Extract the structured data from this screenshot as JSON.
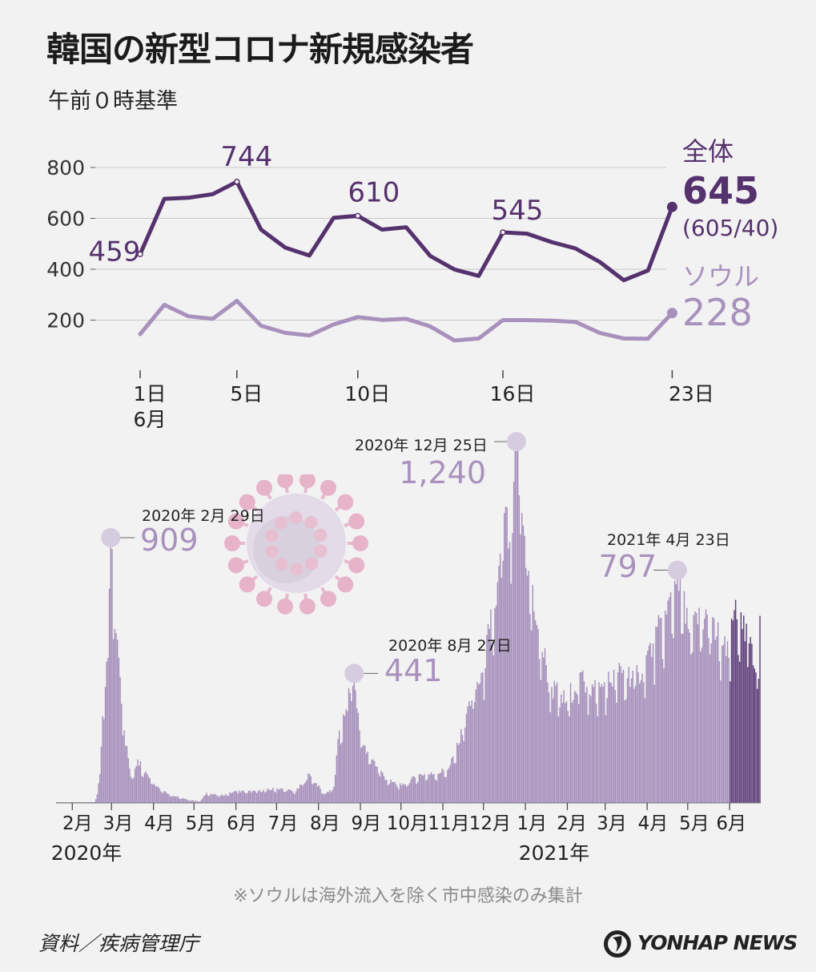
{
  "header": {
    "title": "韓国の新型コロナ新規感染者",
    "subtitle": "午前０時基準"
  },
  "footer": {
    "note": "※ソウルは海外流入を除く市中感染のみ集計",
    "source": "資料／疾病管理庁",
    "logo_text": "YONHAP NEWS"
  },
  "colors": {
    "total_line": "#55316e",
    "seoul_line": "#a891bd",
    "bars": "#a58fbb",
    "bars_june": "#5e3d7a",
    "peak_marker": "#d6cce0"
  },
  "chart_data": [
    {
      "type": "line",
      "y_ticks": [
        "800",
        "600",
        "400",
        "200"
      ],
      "ylim": [
        0,
        800
      ],
      "grid": true,
      "x_tick_labels": [
        {
          "day": 1,
          "label": "1日"
        },
        {
          "day": 5,
          "label": "5日"
        },
        {
          "day": 10,
          "label": "10日"
        },
        {
          "day": 16,
          "label": "16日"
        },
        {
          "day": 23,
          "label": "23日"
        }
      ],
      "month_label": "6月",
      "series": [
        {
          "name": "全体",
          "x": [
            1,
            2,
            3,
            4,
            5,
            6,
            7,
            8,
            9,
            10,
            11,
            12,
            13,
            14,
            15,
            16,
            17,
            18,
            19,
            20,
            21,
            22,
            23
          ],
          "values": [
            459,
            677,
            681,
            695,
            744,
            556,
            485,
            454,
            602,
            610,
            556,
            565,
            452,
            399,
            374,
            545,
            540,
            507,
            482,
            429,
            357,
            395,
            645
          ],
          "point_labels": [
            {
              "day": 1,
              "text": "459"
            },
            {
              "day": 5,
              "text": "744"
            },
            {
              "day": 10,
              "text": "610"
            },
            {
              "day": 16,
              "text": "545"
            }
          ],
          "end_value_label": "645",
          "end_sub_label": "(605/40)"
        },
        {
          "name": "ソウル",
          "x": [
            1,
            2,
            3,
            4,
            5,
            6,
            7,
            8,
            9,
            10,
            11,
            12,
            13,
            14,
            15,
            16,
            17,
            18,
            19,
            20,
            21,
            22,
            23
          ],
          "values": [
            145,
            260,
            215,
            205,
            276,
            178,
            150,
            140,
            183,
            212,
            201,
            205,
            175,
            120,
            128,
            200,
            200,
            198,
            193,
            150,
            128,
            127,
            228
          ],
          "end_value_label": "228"
        }
      ]
    },
    {
      "type": "bar",
      "x_start": "2020-01-20",
      "x_end": "2021-06-23",
      "month_labels": [
        "2月",
        "3月",
        "4月",
        "5月",
        "6月",
        "7月",
        "8月",
        "9月",
        "10月",
        "11月",
        "12月",
        "1月",
        "2月",
        "3月",
        "4月",
        "5月",
        "6月"
      ],
      "year_labels": [
        "2020年",
        "2021年"
      ],
      "anchors": [
        [
          "2020-01-20",
          1
        ],
        [
          "2020-01-31",
          2
        ],
        [
          "2020-02-17",
          3
        ],
        [
          "2020-02-19",
          30
        ],
        [
          "2020-02-21",
          100
        ],
        [
          "2020-02-23",
          300
        ],
        [
          "2020-02-25",
          400
        ],
        [
          "2020-02-27",
          500
        ],
        [
          "2020-02-29",
          909
        ],
        [
          "2020-03-03",
          600
        ],
        [
          "2020-03-06",
          500
        ],
        [
          "2020-03-10",
          250
        ],
        [
          "2020-03-15",
          90
        ],
        [
          "2020-03-20",
          150
        ],
        [
          "2020-03-27",
          100
        ],
        [
          "2020-04-05",
          50
        ],
        [
          "2020-04-15",
          25
        ],
        [
          "2020-04-25",
          12
        ],
        [
          "2020-05-05",
          5
        ],
        [
          "2020-05-10",
          35
        ],
        [
          "2020-05-20",
          25
        ],
        [
          "2020-06-01",
          40
        ],
        [
          "2020-06-15",
          40
        ],
        [
          "2020-07-01",
          50
        ],
        [
          "2020-07-15",
          40
        ],
        [
          "2020-07-25",
          100
        ],
        [
          "2020-08-05",
          30
        ],
        [
          "2020-08-12",
          55
        ],
        [
          "2020-08-16",
          250
        ],
        [
          "2020-08-20",
          300
        ],
        [
          "2020-08-24",
          380
        ],
        [
          "2020-08-27",
          441
        ],
        [
          "2020-08-31",
          250
        ],
        [
          "2020-09-05",
          170
        ],
        [
          "2020-09-10",
          150
        ],
        [
          "2020-09-20",
          80
        ],
        [
          "2020-10-01",
          60
        ],
        [
          "2020-10-15",
          100
        ],
        [
          "2020-10-25",
          100
        ],
        [
          "2020-11-05",
          120
        ],
        [
          "2020-11-12",
          200
        ],
        [
          "2020-11-20",
          350
        ],
        [
          "2020-11-30",
          450
        ],
        [
          "2020-12-05",
          600
        ],
        [
          "2020-12-10",
          680
        ],
        [
          "2020-12-16",
          1000
        ],
        [
          "2020-12-20",
          900
        ],
        [
          "2020-12-25",
          1240
        ],
        [
          "2020-12-29",
          1000
        ],
        [
          "2021-01-03",
          800
        ],
        [
          "2021-01-10",
          600
        ],
        [
          "2021-01-20",
          400
        ],
        [
          "2021-01-31",
          350
        ],
        [
          "2021-02-10",
          450
        ],
        [
          "2021-02-15",
          400
        ],
        [
          "2021-02-25",
          400
        ],
        [
          "2021-03-10",
          450
        ],
        [
          "2021-03-25",
          450
        ],
        [
          "2021-04-05",
          550
        ],
        [
          "2021-04-15",
          650
        ],
        [
          "2021-04-23",
          797
        ],
        [
          "2021-05-01",
          600
        ],
        [
          "2021-05-15",
          650
        ],
        [
          "2021-05-31",
          500
        ],
        [
          "2021-06-05",
          700
        ],
        [
          "2021-06-10",
          600
        ],
        [
          "2021-06-15",
          550
        ],
        [
          "2021-06-20",
          450
        ],
        [
          "2021-06-23",
          645
        ]
      ],
      "peaks": [
        {
          "date": "2020-02-29",
          "date_label": "2020年 2月 29日",
          "value_label": "909"
        },
        {
          "date": "2020-08-27",
          "date_label": "2020年 8月 27日",
          "value_label": "441"
        },
        {
          "date": "2020-12-25",
          "date_label": "2020年 12月 25日",
          "value_label": "1,240"
        },
        {
          "date": "2021-04-23",
          "date_label": "2021年 4月 23日",
          "value_label": "797"
        }
      ]
    }
  ]
}
